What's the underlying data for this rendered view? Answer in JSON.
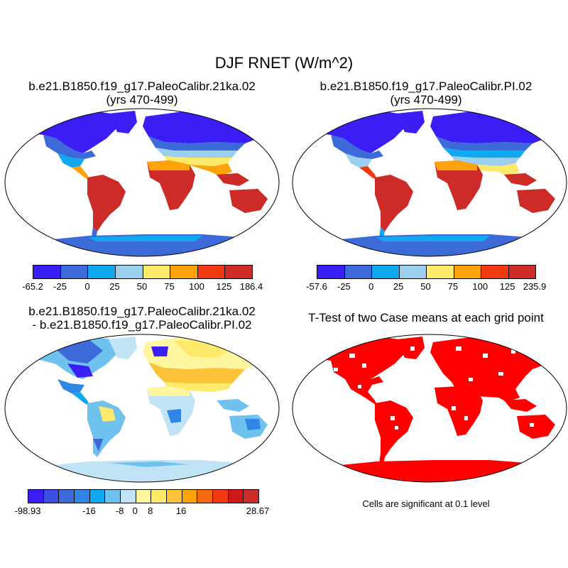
{
  "title": "DJF RNET (W/m^2)",
  "panels": [
    {
      "title_line1": "b.e21.B1850.f19_g17.PaleoCalibr.21ka.02",
      "title_line2": "(yrs 470-499)"
    },
    {
      "title_line1": "b.e21.B1850.f19_g17.PaleoCalibr.PI.02",
      "title_line2": "(yrs 470-499)"
    },
    {
      "title_line1": "b.e21.B1850.f19_g17.PaleoCalibr.21ka.02",
      "title_line2": "- b.e21.B1850.f19_g17.PaleoCalibr.PI.02"
    },
    {
      "title_line1": "T-Test of two Case means at each grid point"
    }
  ],
  "colorbars": [
    {
      "colors": [
        "#3a1ef5",
        "#3c6ad8",
        "#10a8f0",
        "#9ad0ee",
        "#fde96a",
        "#fea20a",
        "#f23a12",
        "#cc2b27"
      ],
      "labels": [
        "-65.2",
        "-25",
        "0",
        "25",
        "50",
        "75",
        "100",
        "125",
        "186.4"
      ]
    },
    {
      "colors": [
        "#3a1ef5",
        "#3c6ad8",
        "#10a8f0",
        "#9ad0ee",
        "#fde96a",
        "#fea20a",
        "#f23a12",
        "#cc2b27"
      ],
      "labels": [
        "-57.6",
        "-25",
        "0",
        "25",
        "50",
        "75",
        "100",
        "125",
        "235.9"
      ]
    },
    {
      "colors": [
        "#3a1ef5",
        "#3b4fe0",
        "#3c6ad8",
        "#2f86e6",
        "#10a8f0",
        "#6fc2ee",
        "#c0e4f5",
        "#fff6a0",
        "#fde96a",
        "#fcc23a",
        "#fea20a",
        "#f86a10",
        "#f23a12",
        "#d11818",
        "#cc2b27"
      ],
      "labels": [
        "-98.93",
        "-16",
        "-8",
        "0",
        "8",
        "16",
        "28.67"
      ]
    }
  ],
  "significance_note": "Cells are significant at 0.1 level"
}
